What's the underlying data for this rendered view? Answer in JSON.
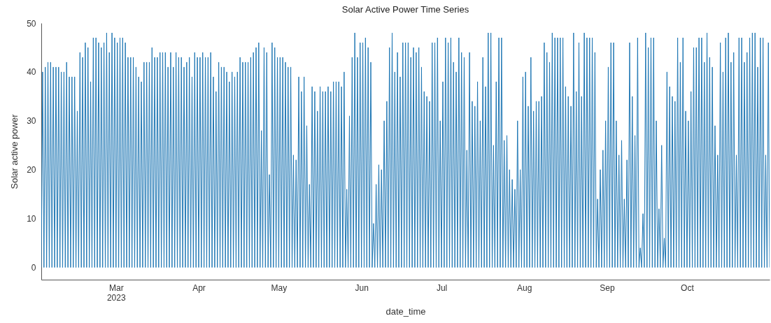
{
  "chart_data": {
    "type": "line",
    "title": "Solar Active Power Time Series",
    "xlabel": "date_time",
    "ylabel": "Solar active power",
    "xlim": [
      "2023-02-01",
      "2023-10-31T23:00"
    ],
    "ylim": [
      -2.5,
      50
    ],
    "yticks": [
      0,
      10,
      20,
      30,
      40,
      50
    ],
    "xticks": [
      {
        "value": "2023-03-01",
        "label": "Mar\n2023"
      },
      {
        "value": "2023-04-01",
        "label": "Apr"
      },
      {
        "value": "2023-05-01",
        "label": "May"
      },
      {
        "value": "2023-06-01",
        "label": "Jun"
      },
      {
        "value": "2023-07-01",
        "label": "Jul"
      },
      {
        "value": "2023-08-01",
        "label": "Aug"
      },
      {
        "value": "2023-09-01",
        "label": "Sep"
      },
      {
        "value": "2023-10-01",
        "label": "Oct"
      }
    ],
    "grid": false,
    "legend": false,
    "series": [
      {
        "color": "#1f77b4",
        "x": [
          "2023-02-01",
          "2023-02-01T12:00",
          "2023-02-02",
          "2023-02-02T12:00",
          "2023-02-03",
          "2023-02-03T12:00",
          "2023-02-04",
          "2023-02-04T12:00",
          "2023-02-05",
          "2023-02-05T12:00",
          "2023-02-06",
          "2023-02-06T12:00",
          "2023-02-07",
          "2023-02-07T12:00",
          "2023-02-08",
          "2023-02-08T12:00",
          "2023-02-09",
          "2023-02-09T12:00",
          "2023-02-10",
          "2023-02-10T12:00",
          "2023-02-11",
          "2023-02-11T12:00",
          "2023-02-12",
          "2023-02-12T12:00",
          "2023-02-13",
          "2023-02-13T12:00",
          "2023-02-14",
          "2023-02-14T12:00",
          "2023-02-15",
          "2023-02-15T12:00",
          "2023-02-16",
          "2023-02-16T12:00",
          "2023-02-17",
          "2023-02-17T12:00",
          "2023-02-18",
          "2023-02-18T12:00",
          "2023-02-19",
          "2023-02-19T12:00",
          "2023-02-20",
          "2023-02-20T12:00",
          "2023-02-21",
          "2023-02-21T12:00",
          "2023-02-22",
          "2023-02-22T12:00",
          "2023-02-23",
          "2023-02-23T12:00",
          "2023-02-24",
          "2023-02-24T12:00",
          "2023-02-25",
          "2023-02-25T12:00",
          "2023-02-26",
          "2023-02-26T12:00",
          "2023-02-27",
          "2023-02-27T12:00",
          "2023-02-28",
          "2023-02-28T12:00",
          "2023-03-01",
          "2023-03-01T12:00",
          "2023-03-02",
          "2023-03-02T12:00",
          "2023-03-03",
          "2023-03-03T12:00",
          "2023-03-04",
          "2023-03-04T12:00",
          "2023-03-05",
          "2023-03-05T12:00",
          "2023-03-06",
          "2023-03-06T12:00",
          "2023-03-07",
          "2023-03-07T12:00",
          "2023-03-08",
          "2023-03-08T12:00",
          "2023-03-09",
          "2023-03-09T12:00",
          "2023-03-10",
          "2023-03-10T12:00",
          "2023-03-11",
          "2023-03-11T12:00",
          "2023-03-12",
          "2023-03-12T12:00",
          "2023-03-13",
          "2023-03-13T12:00",
          "2023-03-14",
          "2023-03-14T12:00",
          "2023-03-15",
          "2023-03-15T12:00",
          "2023-03-16",
          "2023-03-16T12:00",
          "2023-03-17",
          "2023-03-17T12:00",
          "2023-03-18",
          "2023-03-18T12:00",
          "2023-03-19",
          "2023-03-19T12:00",
          "2023-03-20",
          "2023-03-20T12:00",
          "2023-03-21",
          "2023-03-21T12:00",
          "2023-03-22",
          "2023-03-22T12:00",
          "2023-03-23",
          "2023-03-23T12:00",
          "2023-03-24",
          "2023-03-24T12:00",
          "2023-03-25",
          "2023-03-25T12:00",
          "2023-03-26",
          "2023-03-26T12:00",
          "2023-03-27",
          "2023-03-27T12:00",
          "2023-03-28",
          "2023-03-28T12:00",
          "2023-03-29",
          "2023-03-29T12:00",
          "2023-03-30",
          "2023-03-30T12:00",
          "2023-03-31",
          "2023-03-31T12:00",
          "2023-04-01",
          "2023-04-01T12:00",
          "2023-04-02",
          "2023-04-02T12:00",
          "2023-04-03",
          "2023-04-03T12:00",
          "2023-04-04",
          "2023-04-04T12:00",
          "2023-04-05",
          "2023-04-05T12:00",
          "2023-04-06",
          "2023-04-06T12:00",
          "2023-04-07",
          "2023-04-07T12:00",
          "2023-04-08",
          "2023-04-08T12:00",
          "2023-04-09",
          "2023-04-09T12:00",
          "2023-04-10",
          "2023-04-10T12:00",
          "2023-04-11",
          "2023-04-11T12:00",
          "2023-04-12",
          "2023-04-12T12:00",
          "2023-04-13",
          "2023-04-13T12:00",
          "2023-04-14",
          "2023-04-14T12:00",
          "2023-04-15",
          "2023-04-15T12:00",
          "2023-04-16",
          "2023-04-16T12:00",
          "2023-04-17",
          "2023-04-17T12:00",
          "2023-04-18",
          "2023-04-18T12:00",
          "2023-04-19",
          "2023-04-19T12:00",
          "2023-04-20",
          "2023-04-20T12:00",
          "2023-04-21",
          "2023-04-21T12:00",
          "2023-04-22",
          "2023-04-22T12:00",
          "2023-04-23",
          "2023-04-23T12:00",
          "2023-04-24",
          "2023-04-24T12:00",
          "2023-04-25",
          "2023-04-25T12:00",
          "2023-04-26",
          "2023-04-26T12:00",
          "2023-04-27",
          "2023-04-27T12:00",
          "2023-04-28",
          "2023-04-28T12:00",
          "2023-04-29",
          "2023-04-29T12:00",
          "2023-04-30",
          "2023-04-30T12:00",
          "2023-05-01",
          "2023-05-01T12:00",
          "2023-05-02",
          "2023-05-02T12:00",
          "2023-05-03",
          "2023-05-03T12:00",
          "2023-05-04",
          "2023-05-04T12:00",
          "2023-05-05",
          "2023-05-05T12:00",
          "2023-05-06",
          "2023-05-06T12:00",
          "2023-05-07",
          "2023-05-07T12:00",
          "2023-05-08",
          "2023-05-08T12:00",
          "2023-05-09",
          "2023-05-09T12:00",
          "2023-05-10",
          "2023-05-10T12:00",
          "2023-05-11",
          "2023-05-11T12:00",
          "2023-05-12",
          "2023-05-12T12:00",
          "2023-05-13",
          "2023-05-13T12:00",
          "2023-05-14",
          "2023-05-14T12:00",
          "2023-05-15",
          "2023-05-15T12:00",
          "2023-05-16",
          "2023-05-16T12:00",
          "2023-05-17",
          "2023-05-17T12:00",
          "2023-05-18",
          "2023-05-18T12:00",
          "2023-05-19",
          "2023-05-19T12:00",
          "2023-05-20",
          "2023-05-20T12:00",
          "2023-05-21",
          "2023-05-21T12:00",
          "2023-05-22",
          "2023-05-22T12:00",
          "2023-05-23",
          "2023-05-23T12:00",
          "2023-05-24",
          "2023-05-24T12:00",
          "2023-05-25",
          "2023-05-25T12:00",
          "2023-05-26",
          "2023-05-26T12:00",
          "2023-05-27",
          "2023-05-27T12:00",
          "2023-05-28",
          "2023-05-28T12:00",
          "2023-05-29",
          "2023-05-29T12:00",
          "2023-05-30",
          "2023-05-30T12:00",
          "2023-05-31",
          "2023-05-31T12:00",
          "2023-06-01",
          "2023-06-01T12:00",
          "2023-06-02",
          "2023-06-02T12:00",
          "2023-06-03",
          "2023-06-03T12:00",
          "2023-06-04",
          "2023-06-04T12:00",
          "2023-06-05",
          "2023-06-05T12:00",
          "2023-06-06",
          "2023-06-06T12:00",
          "2023-06-07",
          "2023-06-07T12:00",
          "2023-06-08",
          "2023-06-08T12:00",
          "2023-06-09",
          "2023-06-09T12:00",
          "2023-06-10",
          "2023-06-10T12:00",
          "2023-06-11",
          "2023-06-11T12:00",
          "2023-06-12",
          "2023-06-12T12:00",
          "2023-06-13",
          "2023-06-13T12:00",
          "2023-06-14",
          "2023-06-14T12:00",
          "2023-06-15",
          "2023-06-15T12:00",
          "2023-06-16",
          "2023-06-16T12:00",
          "2023-06-17",
          "2023-06-17T12:00",
          "2023-06-18",
          "2023-06-18T12:00",
          "2023-06-19",
          "2023-06-19T12:00",
          "2023-06-20",
          "2023-06-20T12:00",
          "2023-06-21",
          "2023-06-21T12:00",
          "2023-06-22",
          "2023-06-22T12:00",
          "2023-06-23",
          "2023-06-23T12:00",
          "2023-06-24",
          "2023-06-24T12:00",
          "2023-06-25",
          "2023-06-25T12:00",
          "2023-06-26",
          "2023-06-26T12:00",
          "2023-06-27",
          "2023-06-27T12:00",
          "2023-06-28",
          "2023-06-28T12:00",
          "2023-06-29",
          "2023-06-29T12:00",
          "2023-06-30",
          "2023-06-30T12:00",
          "2023-07-01",
          "2023-07-01T12:00",
          "2023-07-02",
          "2023-07-02T12:00",
          "2023-07-03",
          "2023-07-03T12:00",
          "2023-07-04",
          "2023-07-04T12:00",
          "2023-07-05",
          "2023-07-05T12:00",
          "2023-07-06",
          "2023-07-06T12:00",
          "2023-07-07",
          "2023-07-07T12:00",
          "2023-07-08",
          "2023-07-08T12:00",
          "2023-07-09",
          "2023-07-09T12:00",
          "2023-07-10",
          "2023-07-10T12:00",
          "2023-07-11",
          "2023-07-11T12:00",
          "2023-07-12",
          "2023-07-12T12:00",
          "2023-07-13",
          "2023-07-13T12:00",
          "2023-07-14",
          "2023-07-14T12:00",
          "2023-07-15",
          "2023-07-15T12:00",
          "2023-07-16",
          "2023-07-16T12:00",
          "2023-07-17",
          "2023-07-17T12:00",
          "2023-07-18",
          "2023-07-18T12:00",
          "2023-07-19",
          "2023-07-19T12:00",
          "2023-07-20",
          "2023-07-20T12:00",
          "2023-07-21",
          "2023-07-21T12:00",
          "2023-07-22",
          "2023-07-22T12:00",
          "2023-07-23",
          "2023-07-23T12:00",
          "2023-07-24",
          "2023-07-24T12:00",
          "2023-07-25",
          "2023-07-25T12:00",
          "2023-07-26",
          "2023-07-26T12:00",
          "2023-07-27",
          "2023-07-27T12:00",
          "2023-07-28",
          "2023-07-28T12:00",
          "2023-07-29",
          "2023-07-29T12:00",
          "2023-07-30",
          "2023-07-30T12:00",
          "2023-07-31",
          "2023-07-31T12:00",
          "2023-08-01",
          "2023-08-01T12:00",
          "2023-08-02",
          "2023-08-02T12:00",
          "2023-08-03",
          "2023-08-03T12:00",
          "2023-08-04",
          "2023-08-04T12:00",
          "2023-08-05",
          "2023-08-05T12:00",
          "2023-08-06",
          "2023-08-06T12:00",
          "2023-08-07",
          "2023-08-07T12:00",
          "2023-08-08",
          "2023-08-08T12:00",
          "2023-08-09",
          "2023-08-09T12:00",
          "2023-08-10",
          "2023-08-10T12:00",
          "2023-08-11",
          "2023-08-11T12:00",
          "2023-08-12",
          "2023-08-12T12:00",
          "2023-08-13",
          "2023-08-13T12:00",
          "2023-08-14",
          "2023-08-14T12:00",
          "2023-08-15",
          "2023-08-15T12:00",
          "2023-08-16",
          "2023-08-16T12:00",
          "2023-08-17",
          "2023-08-17T12:00",
          "2023-08-18",
          "2023-08-18T12:00",
          "2023-08-19",
          "2023-08-19T12:00",
          "2023-08-20",
          "2023-08-20T12:00",
          "2023-08-21",
          "2023-08-21T12:00",
          "2023-08-22",
          "2023-08-22T12:00",
          "2023-08-23",
          "2023-08-23T12:00",
          "2023-08-24",
          "2023-08-24T12:00",
          "2023-08-25",
          "2023-08-25T12:00",
          "2023-08-26",
          "2023-08-26T12:00",
          "2023-08-27",
          "2023-08-27T12:00",
          "2023-08-28",
          "2023-08-28T12:00",
          "2023-08-29",
          "2023-08-29T12:00",
          "2023-08-30",
          "2023-08-30T12:00",
          "2023-08-31",
          "2023-08-31T12:00",
          "2023-09-01",
          "2023-09-01T12:00",
          "2023-09-02",
          "2023-09-02T12:00",
          "2023-09-03",
          "2023-09-03T12:00",
          "2023-09-04",
          "2023-09-04T12:00",
          "2023-09-05",
          "2023-09-05T12:00",
          "2023-09-06",
          "2023-09-06T12:00",
          "2023-09-07",
          "2023-09-07T12:00",
          "2023-09-08",
          "2023-09-08T12:00",
          "2023-09-09",
          "2023-09-09T12:00",
          "2023-09-10",
          "2023-09-10T12:00",
          "2023-09-11",
          "2023-09-11T12:00",
          "2023-09-12",
          "2023-09-12T12:00",
          "2023-09-13",
          "2023-09-13T12:00",
          "2023-09-14",
          "2023-09-14T12:00",
          "2023-09-15",
          "2023-09-15T12:00",
          "2023-09-16",
          "2023-09-16T12:00",
          "2023-09-17",
          "2023-09-17T12:00",
          "2023-09-18",
          "2023-09-18T12:00",
          "2023-09-19",
          "2023-09-19T12:00",
          "2023-09-20",
          "2023-09-20T12:00",
          "2023-09-21",
          "2023-09-21T12:00",
          "2023-09-22",
          "2023-09-22T12:00",
          "2023-09-23",
          "2023-09-23T12:00",
          "2023-09-24",
          "2023-09-24T12:00",
          "2023-09-25",
          "2023-09-25T12:00",
          "2023-09-26",
          "2023-09-26T12:00",
          "2023-09-27",
          "2023-09-27T12:00",
          "2023-09-28",
          "2023-09-28T12:00",
          "2023-09-29",
          "2023-09-29T12:00",
          "2023-09-30",
          "2023-09-30T12:00",
          "2023-10-01",
          "2023-10-01T12:00",
          "2023-10-02",
          "2023-10-02T12:00",
          "2023-10-03",
          "2023-10-03T12:00",
          "2023-10-04",
          "2023-10-04T12:00",
          "2023-10-05",
          "2023-10-05T12:00",
          "2023-10-06",
          "2023-10-06T12:00",
          "2023-10-07",
          "2023-10-07T12:00",
          "2023-10-08",
          "2023-10-08T12:00",
          "2023-10-09",
          "2023-10-09T12:00",
          "2023-10-10",
          "2023-10-10T12:00",
          "2023-10-11",
          "2023-10-11T12:00",
          "2023-10-12",
          "2023-10-12T12:00",
          "2023-10-13",
          "2023-10-13T12:00",
          "2023-10-14",
          "2023-10-14T12:00",
          "2023-10-15",
          "2023-10-15T12:00",
          "2023-10-16",
          "2023-10-16T12:00",
          "2023-10-17",
          "2023-10-17T12:00",
          "2023-10-18",
          "2023-10-18T12:00",
          "2023-10-19",
          "2023-10-19T12:00",
          "2023-10-20",
          "2023-10-20T12:00",
          "2023-10-21",
          "2023-10-21T12:00",
          "2023-10-22",
          "2023-10-22T12:00",
          "2023-10-23",
          "2023-10-23T12:00",
          "2023-10-24",
          "2023-10-24T12:00",
          "2023-10-25",
          "2023-10-25T12:00",
          "2023-10-26",
          "2023-10-26T12:00",
          "2023-10-27",
          "2023-10-27T12:00",
          "2023-10-28",
          "2023-10-28T12:00",
          "2023-10-29",
          "2023-10-29T12:00",
          "2023-10-30",
          "2023-10-30T12:00",
          "2023-10-31",
          "2023-10-31T12:00",
          "2023-10-31T23:00"
        ],
        "values": [
          0,
          40,
          0,
          41,
          0,
          42,
          0,
          42,
          0,
          41,
          0,
          41,
          0,
          41,
          0,
          40,
          0,
          40,
          0,
          42,
          0,
          39,
          0,
          39,
          0,
          39,
          0,
          32,
          0,
          44,
          0,
          43,
          0,
          46,
          0,
          45,
          0,
          38,
          0,
          47,
          0,
          47,
          0,
          46,
          0,
          45,
          0,
          46,
          0,
          48,
          0,
          44,
          0,
          48,
          0,
          47,
          0,
          46,
          0,
          47,
          0,
          47,
          0,
          46,
          0,
          43,
          0,
          43,
          0,
          43,
          0,
          41,
          0,
          39,
          0,
          38,
          0,
          42,
          0,
          42,
          0,
          42,
          0,
          45,
          0,
          43,
          0,
          43,
          0,
          44,
          0,
          44,
          0,
          44,
          0,
          41,
          0,
          44,
          0,
          41,
          0,
          44,
          0,
          43,
          0,
          43,
          0,
          41,
          0,
          42,
          0,
          43,
          0,
          39,
          0,
          44,
          0,
          43,
          0,
          43,
          0,
          44,
          0,
          43,
          0,
          43,
          0,
          44,
          0,
          39,
          0,
          36,
          0,
          42,
          0,
          41,
          0,
          41,
          0,
          40,
          0,
          38,
          0,
          40,
          0,
          39,
          0,
          40,
          0,
          43,
          0,
          42,
          0,
          42,
          0,
          42,
          0,
          43,
          0,
          44,
          0,
          45,
          0,
          46,
          0,
          28,
          0,
          45,
          0,
          44,
          0,
          19,
          0,
          46,
          0,
          45,
          0,
          43,
          0,
          43,
          0,
          43,
          0,
          42,
          0,
          41,
          0,
          41,
          0,
          23,
          0,
          22,
          0,
          39,
          0,
          36,
          0,
          39,
          0,
          29,
          0,
          17,
          0,
          37,
          0,
          36,
          0,
          32,
          0,
          37,
          0,
          36,
          0,
          36,
          0,
          37,
          0,
          36,
          0,
          38,
          0,
          38,
          0,
          38,
          0,
          37,
          0,
          40,
          0,
          16,
          0,
          31,
          0,
          43,
          0,
          48,
          0,
          43,
          0,
          46,
          0,
          46,
          0,
          47,
          0,
          45,
          0,
          42,
          0,
          9,
          0,
          17,
          0,
          21,
          0,
          20,
          0,
          30,
          0,
          34,
          0,
          45,
          0,
          48,
          0,
          40,
          0,
          44,
          0,
          39,
          0,
          46,
          0,
          46,
          0,
          46,
          0,
          43,
          0,
          45,
          0,
          44,
          0,
          45,
          0,
          41,
          0,
          36,
          0,
          35,
          0,
          34,
          0,
          46,
          0,
          46,
          0,
          47,
          0,
          30,
          0,
          38,
          0,
          47,
          0,
          46,
          0,
          47,
          0,
          42,
          0,
          40,
          0,
          47,
          0,
          44,
          0,
          43,
          0,
          24,
          0,
          44,
          0,
          34,
          0,
          33,
          0,
          38,
          0,
          30,
          0,
          43,
          0,
          37,
          0,
          48,
          0,
          48,
          0,
          25,
          0,
          38,
          0,
          47,
          0,
          47,
          0,
          26,
          0,
          27,
          0,
          20,
          0,
          18,
          0,
          16,
          0,
          30,
          0,
          20,
          0,
          39,
          0,
          40,
          0,
          33,
          0,
          43,
          0,
          32,
          0,
          34,
          0,
          34,
          0,
          35,
          0,
          46,
          0,
          44,
          0,
          42,
          0,
          48,
          0,
          47,
          0,
          47,
          0,
          47,
          0,
          47,
          0,
          37,
          0,
          35,
          0,
          33,
          0,
          48,
          0,
          36,
          0,
          46,
          0,
          35,
          0,
          48,
          0,
          47,
          0,
          47,
          0,
          47,
          0,
          44,
          0,
          14,
          0,
          20,
          0,
          24,
          0,
          30,
          0,
          41,
          0,
          46,
          0,
          46,
          0,
          30,
          0,
          23,
          0,
          26,
          0,
          14,
          0,
          22,
          0,
          46,
          0,
          35,
          0,
          27,
          0,
          47,
          0,
          4,
          0,
          11,
          0,
          48,
          0,
          45,
          0,
          47,
          0,
          47,
          0,
          30,
          0,
          12,
          0,
          25,
          0,
          6,
          0,
          40,
          0,
          37,
          0,
          35,
          0,
          34,
          0,
          47,
          0,
          42,
          0,
          47,
          0,
          32,
          0,
          30,
          0,
          36,
          0,
          45,
          0,
          45,
          0,
          47,
          0,
          47,
          0,
          42,
          0,
          48,
          0,
          43,
          0,
          41,
          0,
          29,
          0,
          23,
          0,
          46,
          0,
          40,
          0,
          47,
          0,
          48,
          0,
          42,
          0,
          44,
          0,
          23,
          0,
          47,
          0,
          47,
          0,
          42,
          0,
          44,
          0,
          47,
          0,
          48,
          0,
          48,
          0,
          41,
          0,
          47,
          0,
          47,
          0,
          23,
          0,
          46,
          0
        ]
      }
    ]
  }
}
